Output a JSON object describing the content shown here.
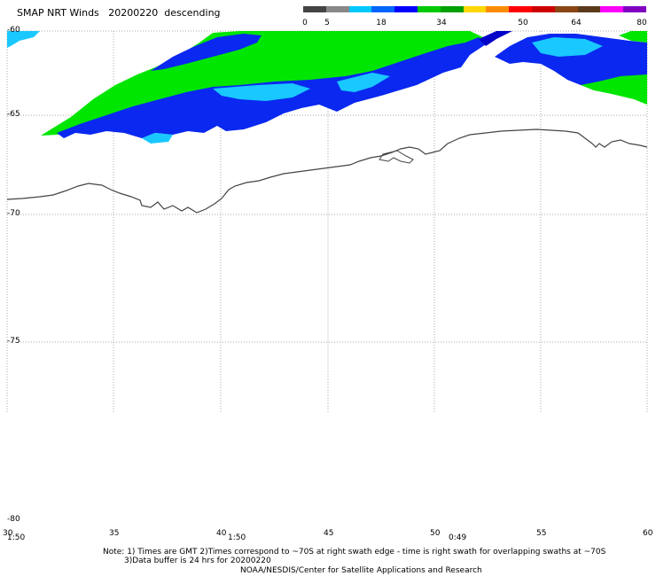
{
  "title": "SMAP NRT Winds   20200220  descending",
  "colorbar": {
    "ticks": [
      "0",
      "5",
      "18",
      "34",
      "50",
      "64",
      "80"
    ],
    "colors": [
      "#444444",
      "#888888",
      "#00c8ff",
      "#0064ff",
      "#0000ff",
      "#00c800",
      "#00a000",
      "#ffd700",
      "#ff8c00",
      "#ff0000",
      "#cc0000",
      "#8b4513",
      "#5a3a1a",
      "#ff00ff",
      "#8000c0"
    ]
  },
  "map": {
    "lat_labels": [
      "-60",
      "-65",
      "-70",
      "-75",
      "-80"
    ],
    "lon_labels": [
      "30",
      "35",
      "40",
      "45",
      "50",
      "55",
      "60"
    ],
    "time_labels": [
      "1:50",
      "1:50",
      "0:49"
    ],
    "colors": {
      "cyan": "#19c8ff",
      "blue": "#0a28f0",
      "dark_blue": "#0000c8",
      "green": "#00e600",
      "coast": "#444444",
      "grid": "#aaaaaa"
    }
  },
  "notes": {
    "line1": "Note: 1) Times are GMT 2)Times correspond to ~70S at right swath edge - time is right swath for overlapping swaths at ~70S",
    "line2": "3)Data buffer is 24 hrs for 20200220",
    "line3": "NOAA/NESDIS/Center for Satellite Applications and Research"
  }
}
